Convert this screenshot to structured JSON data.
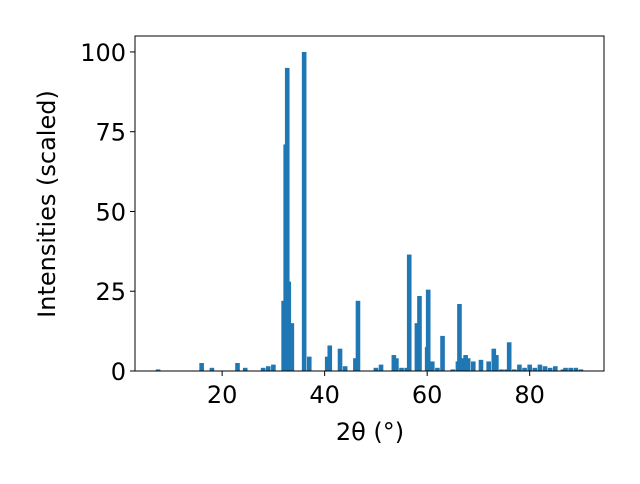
{
  "chart_data": {
    "type": "bar",
    "x_label": "2θ (°)",
    "y_label": "Intensities (scaled)",
    "x": [
      7.5,
      16,
      18,
      23,
      24.5,
      28,
      29,
      30,
      32,
      32.4,
      32.7,
      33,
      33.6,
      36,
      37,
      40.5,
      41,
      43,
      44,
      46,
      46.5,
      50,
      51,
      53.5,
      54,
      55,
      56,
      56.5,
      58,
      58.5,
      60,
      60.2,
      61,
      62,
      63,
      65,
      66,
      66.3,
      67,
      67.5,
      68,
      69,
      70.5,
      72,
      73,
      73.5,
      74.5,
      75.5,
      76,
      77,
      78,
      79,
      80,
      81,
      82,
      83,
      84,
      85,
      86.5,
      87,
      88,
      89,
      90
    ],
    "values": [
      0.5,
      2.5,
      1,
      2.5,
      1,
      1,
      1.5,
      2,
      22,
      71,
      95,
      28,
      15,
      100,
      4.5,
      4.5,
      8,
      7,
      1.5,
      4,
      22,
      1,
      2,
      5,
      4,
      1,
      1,
      36.5,
      15,
      23.5,
      7.5,
      25.5,
      3,
      1,
      11,
      0.5,
      3,
      21,
      4,
      5,
      4,
      3,
      3.5,
      3,
      7,
      5,
      0.5,
      0.5,
      9,
      0.5,
      2,
      1,
      2,
      1,
      2,
      1.5,
      1,
      1.5,
      0.5,
      1,
      1,
      1,
      0.5
    ],
    "color": "#1f77b4",
    "xlim": [
      3,
      94.5
    ],
    "ylim": [
      0,
      105
    ],
    "xticks": [
      20,
      40,
      60,
      80
    ],
    "yticks": [
      0,
      25,
      50,
      75,
      100
    ]
  }
}
